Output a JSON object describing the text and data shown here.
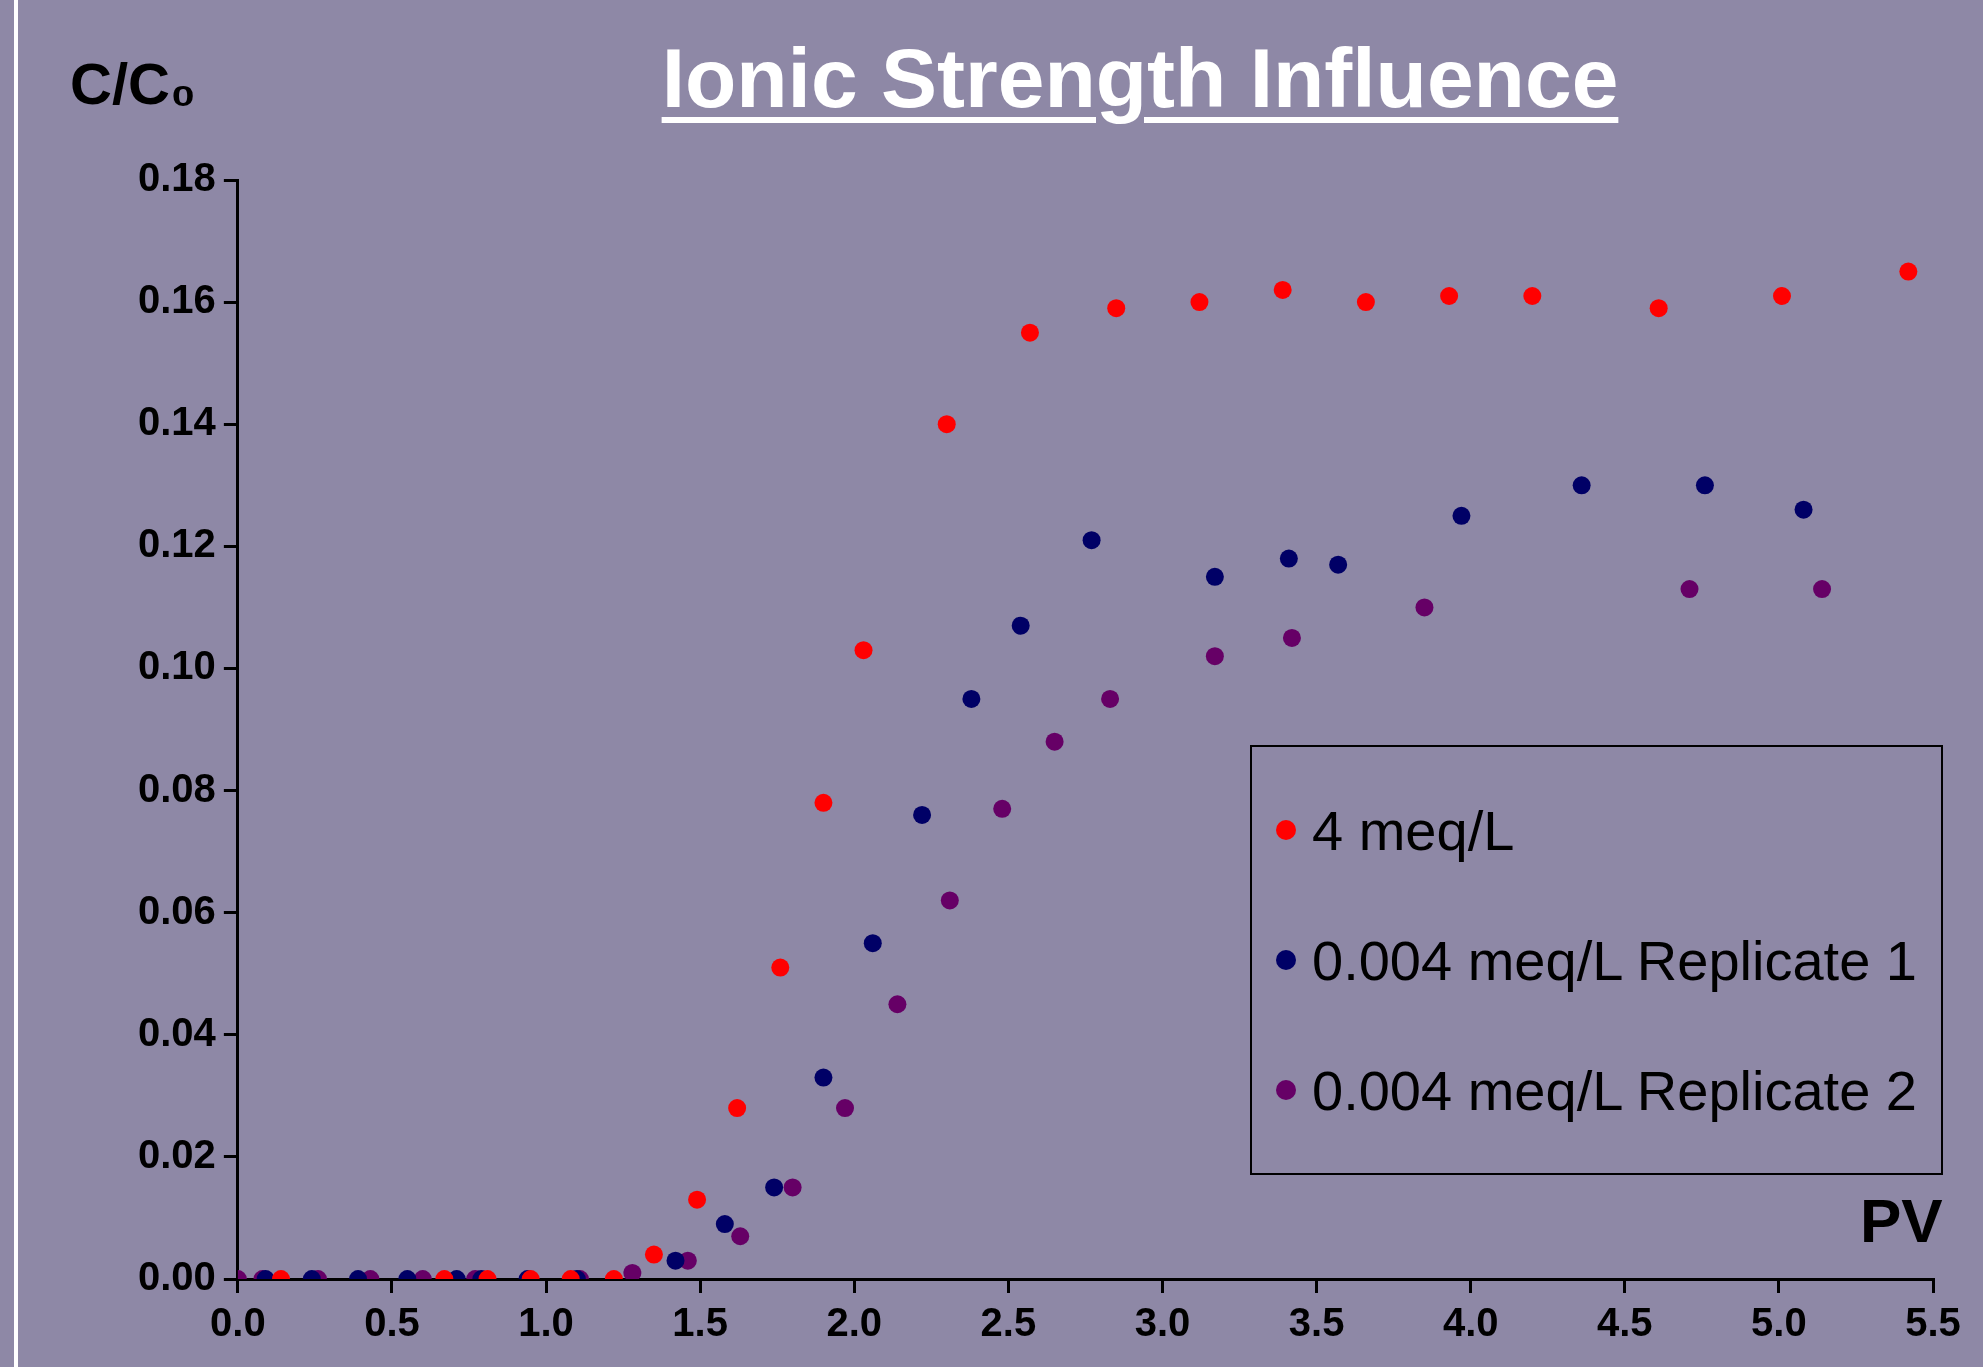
{
  "chart_data": {
    "type": "scatter",
    "title": "Ionic Strength Influence",
    "xlabel": "PV",
    "ylabel": "C/C₀",
    "xlim": [
      0,
      5.5
    ],
    "xticks": [
      {
        "value": 0,
        "label": "0.0"
      },
      {
        "value": 0.5,
        "label": "0.5"
      },
      {
        "value": 1,
        "label": "1.0"
      },
      {
        "value": 1.5,
        "label": "1.5"
      },
      {
        "value": 2,
        "label": "2.0"
      },
      {
        "value": 2.5,
        "label": "2.5"
      },
      {
        "value": 3,
        "label": "3.0"
      },
      {
        "value": 3.5,
        "label": "3.5"
      },
      {
        "value": 4,
        "label": "4.0"
      },
      {
        "value": 4.5,
        "label": "4.5"
      },
      {
        "value": 5,
        "label": "5.0"
      },
      {
        "value": 5.5,
        "label": "5.5"
      }
    ],
    "ylim": [
      0,
      0.18
    ],
    "yticks": [
      {
        "value": 0,
        "label": "0.00"
      },
      {
        "value": 0.02,
        "label": "0.02"
      },
      {
        "value": 0.04,
        "label": "0.04"
      },
      {
        "value": 0.06,
        "label": "0.06"
      },
      {
        "value": 0.08,
        "label": "0.08"
      },
      {
        "value": 0.1,
        "label": "0.10"
      },
      {
        "value": 0.12,
        "label": "0.12"
      },
      {
        "value": 0.14,
        "label": "0.14"
      },
      {
        "value": 0.16,
        "label": "0.16"
      },
      {
        "value": 0.18,
        "label": "0.18"
      }
    ],
    "grid": false,
    "legend": "right",
    "marker": "circle",
    "series": [
      {
        "name": "4 meq/L",
        "color": "#ff0000",
        "x": [
          0.14,
          0.67,
          0.81,
          0.95,
          1.08,
          1.22,
          1.35,
          1.49,
          1.62,
          1.76,
          1.9,
          2.03,
          2.3,
          2.57,
          2.85,
          3.12,
          3.39,
          3.66,
          3.93,
          4.2,
          4.61,
          5.01,
          5.42
        ],
        "values": [
          0,
          0,
          0,
          0,
          0,
          0,
          0.004,
          0.013,
          0.028,
          0.051,
          0.078,
          0.103,
          0.14,
          0.155,
          0.159,
          0.16,
          0.162,
          0.16,
          0.161,
          0.161,
          0.159,
          0.161,
          0.165
        ]
      },
      {
        "name": "0.004 meq/L Replicate 1",
        "color": "#000066",
        "x": [
          0.09,
          0.24,
          0.39,
          0.55,
          0.71,
          0.79,
          0.94,
          1.1,
          1.42,
          1.58,
          1.74,
          1.9,
          2.06,
          2.22,
          2.38,
          2.54,
          2.77,
          3.17,
          3.41,
          3.57,
          3.97,
          4.36,
          4.76,
          5.08
        ],
        "values": [
          0,
          0,
          0,
          0,
          0,
          0,
          0,
          0,
          0.003,
          0.009,
          0.015,
          0.033,
          0.055,
          0.076,
          0.095,
          0.107,
          0.121,
          0.115,
          0.118,
          0.117,
          0.125,
          0.13,
          0.13,
          0.126
        ]
      },
      {
        "name": "0.004 meq/L Replicate 2",
        "color": "#660066",
        "x": [
          0,
          0.08,
          0.26,
          0.43,
          0.6,
          0.77,
          1.11,
          1.28,
          1.46,
          1.63,
          1.8,
          1.97,
          2.14,
          2.31,
          2.48,
          2.65,
          2.83,
          3.17,
          3.42,
          3.85,
          4.71,
          5.14
        ],
        "values": [
          0,
          0,
          0,
          0,
          0,
          0,
          0,
          0.001,
          0.003,
          0.007,
          0.015,
          0.028,
          0.045,
          0.062,
          0.077,
          0.088,
          0.095,
          0.102,
          0.105,
          0.11,
          0.113,
          0.113
        ]
      }
    ]
  }
}
